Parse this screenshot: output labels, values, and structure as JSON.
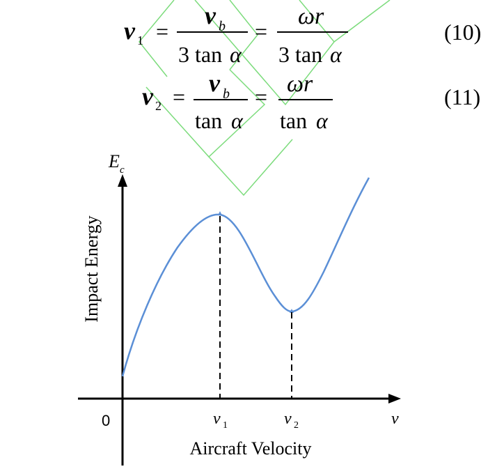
{
  "watermark": {
    "color": "#7ddc7d"
  },
  "equations": [
    {
      "lhs": "v",
      "lhs_sub": "1",
      "frac1_num": "v",
      "frac1_num_sub": "b",
      "frac1_den": "3 tan",
      "frac1_den_greek": "α",
      "frac2_num": "ωr",
      "frac2_den": "3 tan",
      "frac2_den_greek": "α",
      "number": "(10)"
    },
    {
      "lhs": "v",
      "lhs_sub": "2",
      "frac1_num": "v",
      "frac1_num_sub": "b",
      "frac1_den": "tan",
      "frac1_den_greek": "α",
      "frac2_num": "ωr",
      "frac2_den": "tan",
      "frac2_den_greek": "α",
      "number": "(11)"
    }
  ],
  "figure": {
    "y_symbol": "E",
    "y_symbol_sub": "c",
    "ylabel": "Impact Energy",
    "xlabel": "Aircraft Velocity",
    "x_symbol": "v",
    "origin": "0",
    "tick_v1": "v",
    "tick_v1_sub": "1",
    "tick_v2": "v",
    "tick_v2_sub": "2",
    "curve_color": "#5b8fd6"
  }
}
